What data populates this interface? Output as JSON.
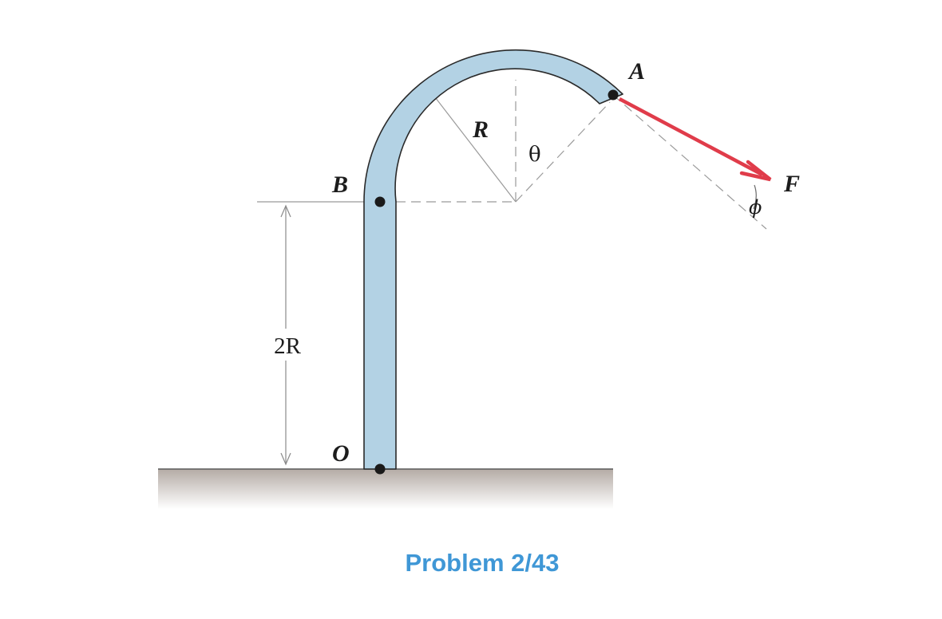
{
  "colors": {
    "rod_fill": "#b3d2e4",
    "rod_stroke": "#2a2a2a",
    "ground_top": "#b4aba5",
    "ground_bottom": "#ffffff",
    "force_arrow": "#e03c4a",
    "caption": "#3f97d6",
    "dashed": "#9a9a9a"
  },
  "labels": {
    "point_a": "A",
    "point_b": "B",
    "point_o": "O",
    "force": "F",
    "radius": "R",
    "angle_theta": "θ",
    "angle_phi": "ϕ",
    "dimension_height": "2R"
  },
  "caption": "Problem 2/43"
}
